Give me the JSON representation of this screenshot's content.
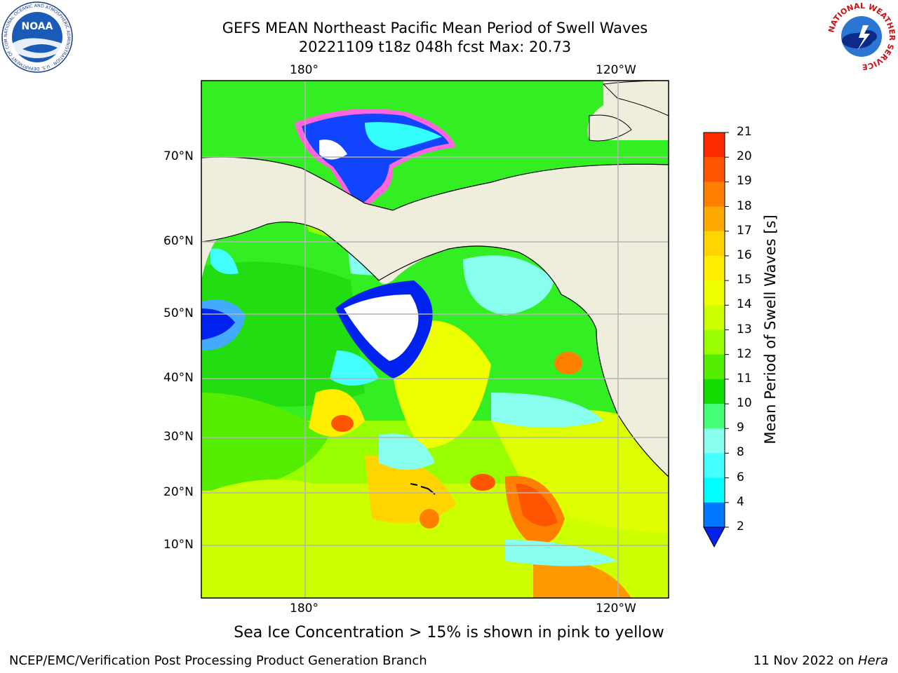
{
  "header": {
    "title_line1": "GEFS MEAN Northeast Pacific Mean Period of Swell Waves",
    "title_line2": "20221109 t18z 048h fcst   Max: 20.73"
  },
  "axes": {
    "top_lon": [
      "180°",
      "120°W"
    ],
    "bottom_lon": [
      "180°",
      "120°W"
    ],
    "lat": [
      "70°N",
      "60°N",
      "50°N",
      "40°N",
      "30°N",
      "20°N",
      "10°N"
    ]
  },
  "colorbar": {
    "label": "Mean Period of Swell Waves [s]",
    "ticks": [
      "21",
      "20",
      "19",
      "18",
      "17",
      "16",
      "15",
      "14",
      "13",
      "12",
      "11",
      "10",
      "9",
      "8",
      "6",
      "4",
      "2"
    ],
    "colors": [
      "#ff0000",
      "#ff2a00",
      "#ff5500",
      "#ff8000",
      "#ffaa00",
      "#ffd400",
      "#ffee00",
      "#eeff00",
      "#ccff00",
      "#99ff00",
      "#55ee00",
      "#11dd00",
      "#44ff77",
      "#88ffee",
      "#44ffff",
      "#00ffff",
      "#0077ff"
    ],
    "extend_color": "#0022ee"
  },
  "map": {
    "land_color": "#efeedd",
    "ice_note": "Sea Ice Concentration > 15% is shown in pink to yellow"
  },
  "footer": {
    "left": "NCEP/EMC/Verification Post Processing Product Generation Branch",
    "right_prefix": "11 Nov 2022 on ",
    "right_machine": "Hera"
  },
  "logos": {
    "noaa": "NOAA",
    "noaa_ring": "NATIONAL OCEANIC AND ATMOSPHERIC ADMINISTRATION · U.S. DEPARTMENT OF COMMERCE",
    "nws_ring": "NATIONAL WEATHER SERVICE"
  }
}
